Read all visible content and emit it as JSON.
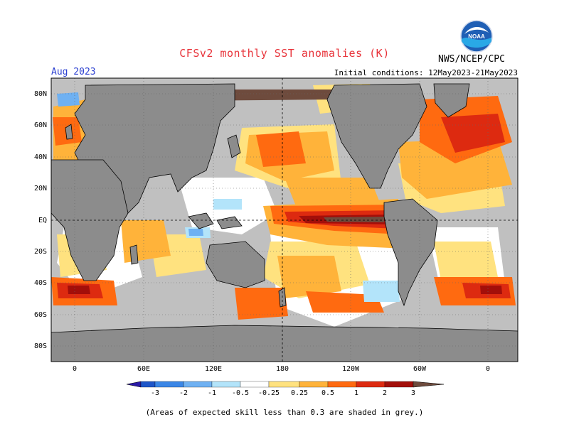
{
  "header": {
    "title": "CFSv2 monthly SST anomalies (K)",
    "org": "NWS/NCEP/CPC",
    "logo_text": "NOAA",
    "valid_month": "Aug 2023",
    "initial_conditions": "Initial conditions: 12May2023-21May2023"
  },
  "map": {
    "lat_labels": [
      "80N",
      "60N",
      "40N",
      "20N",
      "EQ",
      "20S",
      "40S",
      "60S",
      "80S"
    ],
    "lon_labels": [
      "0",
      "60E",
      "120E",
      "180",
      "120W",
      "60W",
      "0"
    ],
    "land_color": "#8c8c8c",
    "lowskill_color": "#c0c0c0"
  },
  "colorbar": {
    "ticks": [
      "-3",
      "-2",
      "-1",
      "-0.5",
      "-0.25",
      "0.25",
      "0.5",
      "1",
      "2",
      "3"
    ],
    "colors": [
      "#2a1aa6",
      "#1d55c8",
      "#3a86e6",
      "#6fb1f2",
      "#b3e4fa",
      "#ffffff",
      "#ffe27f",
      "#ffb33a",
      "#ff6a10",
      "#dd2a10",
      "#a30f0a",
      "#6e4b3d"
    ]
  },
  "footnote": "(Areas of expected skill less than 0.3 are shaded in grey.)"
}
